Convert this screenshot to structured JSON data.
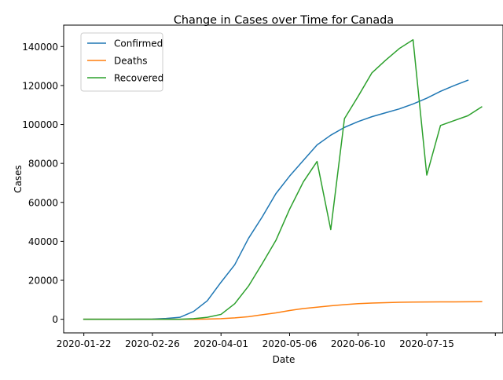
{
  "chart_data": {
    "type": "line",
    "title": "Change in Cases over Time for Canada",
    "xlabel": "Date",
    "ylabel": "Cases",
    "x_tick_labels": [
      "2020-01-22",
      "2020-02-26",
      "2020-04-01",
      "2020-05-06",
      "2020-06-10",
      "2020-07-15"
    ],
    "x_tick_days": [
      0,
      35,
      70,
      105,
      140,
      175
    ],
    "x_extra_tick_day": 210,
    "xlim_days": [
      -10.3,
      214.3
    ],
    "y_ticks": [
      0,
      20000,
      40000,
      60000,
      80000,
      100000,
      120000,
      140000
    ],
    "y_tick_labels": [
      "0",
      "20000",
      "40000",
      "60000",
      "80000",
      "100000",
      "120000",
      "140000"
    ],
    "ylim": [
      -7000,
      151000
    ],
    "legend_position": "upper-left",
    "grid": false,
    "x_days": [
      0,
      7,
      14,
      21,
      28,
      35,
      42,
      49,
      56,
      63,
      70,
      77,
      84,
      91,
      98,
      105,
      112,
      119,
      126,
      133,
      140,
      147,
      154,
      161,
      168,
      175,
      182,
      189,
      196,
      203
    ],
    "series": [
      {
        "name": "Confirmed",
        "color": "#1f77b4",
        "values": [
          0,
          0,
          0,
          0,
          50,
          100,
          400,
          1000,
          4000,
          9500,
          19000,
          28000,
          41500,
          52500,
          64500,
          73500,
          81500,
          89500,
          94500,
          98500,
          101500,
          104000,
          106000,
          108000,
          110500,
          113500,
          117000,
          120000,
          122700,
          null
        ]
      },
      {
        "name": "Deaths",
        "color": "#ff7f0e",
        "values": [
          0,
          0,
          0,
          0,
          0,
          0,
          0,
          0,
          0,
          100,
          300,
          700,
          1300,
          2300,
          3300,
          4500,
          5500,
          6200,
          6900,
          7500,
          8000,
          8300,
          8500,
          8700,
          8800,
          8850,
          8900,
          8930,
          8950,
          9000
        ]
      },
      {
        "name": "Recovered",
        "color": "#2ca02c",
        "values": [
          0,
          0,
          0,
          0,
          0,
          0,
          0,
          0,
          300,
          1000,
          2500,
          8000,
          17000,
          28500,
          40500,
          56500,
          70500,
          81000,
          46000,
          103000,
          114500,
          126500,
          133000,
          139000,
          143500,
          74000,
          99500,
          102000,
          104500,
          109000
        ]
      }
    ],
    "series_x_days": {
      "Confirmed": [
        0,
        7,
        14,
        21,
        28,
        35,
        42,
        49,
        56,
        63,
        70,
        77,
        84,
        91,
        98,
        105,
        112,
        119,
        126,
        133,
        140,
        147,
        154,
        161,
        168,
        175,
        182,
        189,
        196,
        203
      ],
      "Deaths": [
        0,
        7,
        14,
        21,
        28,
        35,
        42,
        49,
        56,
        63,
        70,
        77,
        84,
        91,
        98,
        105,
        112,
        119,
        126,
        133,
        140,
        147,
        154,
        161,
        168,
        175,
        182,
        189,
        196,
        203
      ],
      "Recovered": [
        0,
        7,
        14,
        21,
        28,
        35,
        42,
        49,
        56,
        63,
        70,
        77,
        84,
        91,
        98,
        105,
        112,
        119,
        126,
        133,
        140,
        147,
        154,
        161,
        168,
        175,
        182,
        189,
        196,
        203
      ]
    }
  }
}
